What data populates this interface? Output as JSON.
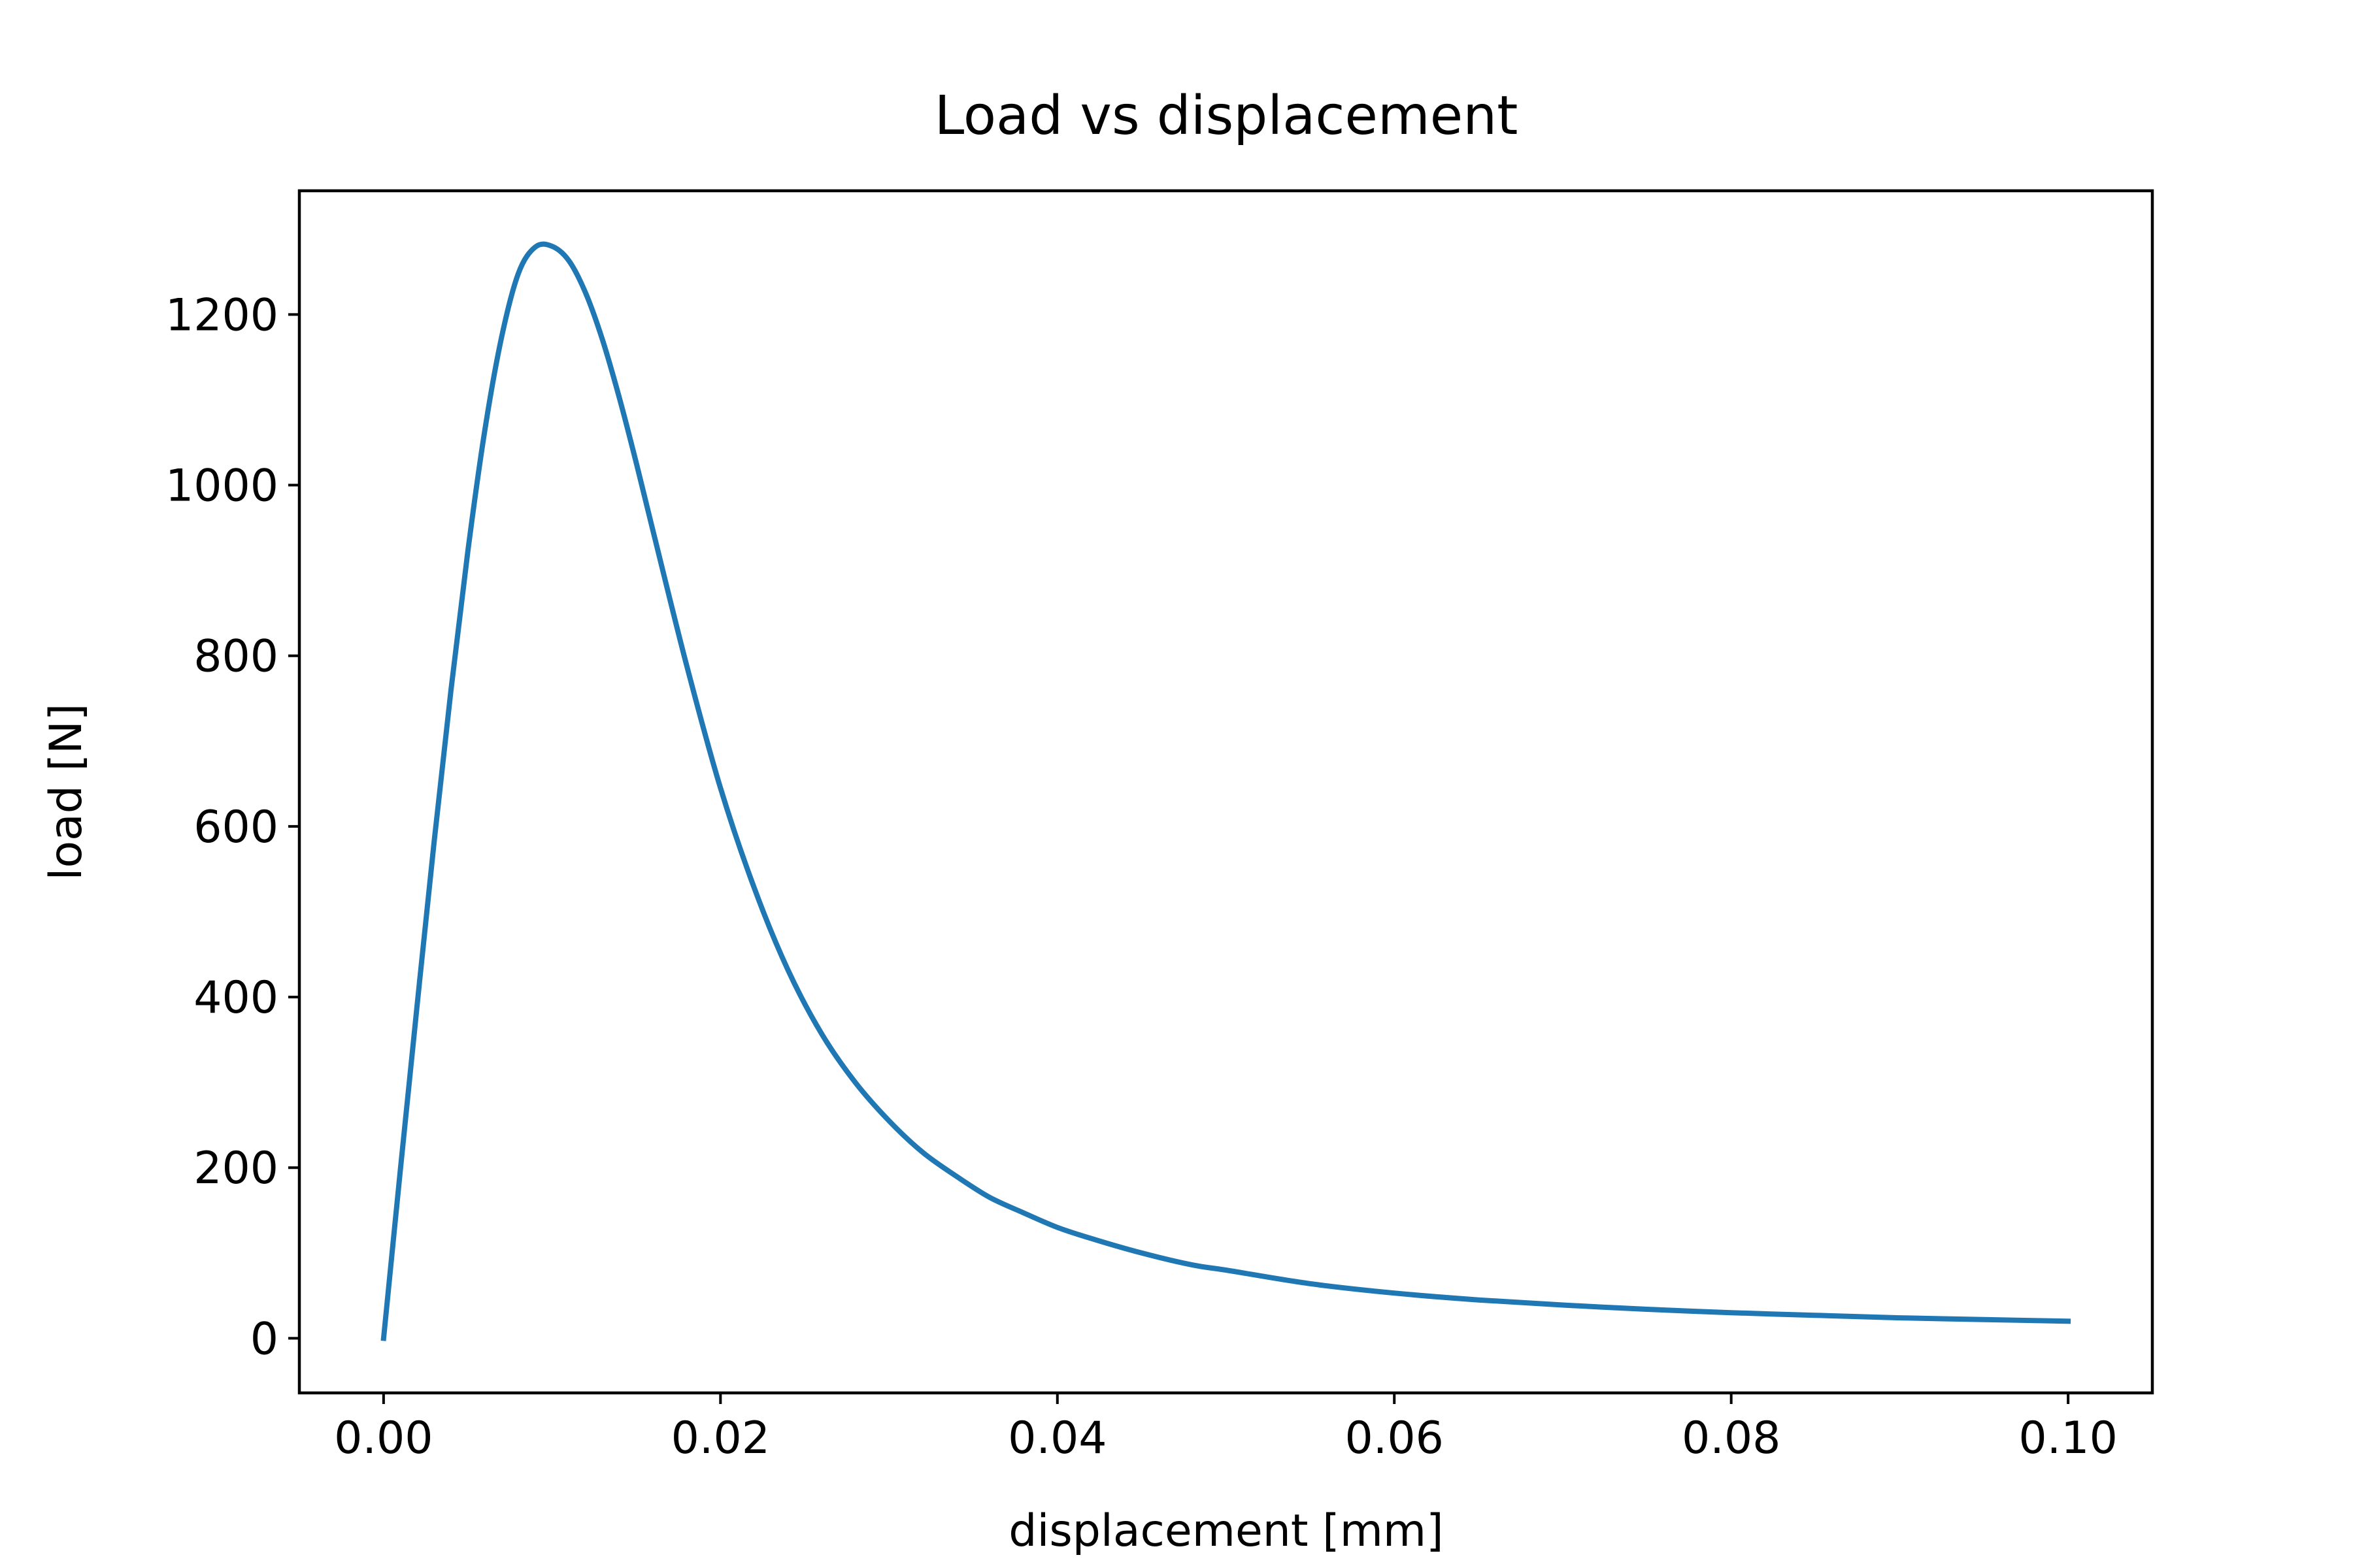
{
  "chart_data": {
    "type": "line",
    "title": "Load vs displacement",
    "xlabel": "displacement [mm]",
    "ylabel": "load [N]",
    "xlim": [
      -0.005,
      0.105
    ],
    "ylim": [
      -64,
      1345
    ],
    "xticks": [
      0.0,
      0.02,
      0.04,
      0.06,
      0.08,
      0.1
    ],
    "xtick_labels": [
      "0.00",
      "0.02",
      "0.04",
      "0.06",
      "0.08",
      "0.10"
    ],
    "yticks": [
      0,
      200,
      400,
      600,
      800,
      1000,
      1200
    ],
    "ytick_labels": [
      "0",
      "200",
      "400",
      "600",
      "800",
      "1000",
      "1200"
    ],
    "grid": false,
    "series": [
      {
        "color": "#1f77b4",
        "x": [
          0.0,
          0.001,
          0.002,
          0.003,
          0.004,
          0.005,
          0.006,
          0.007,
          0.008,
          0.009,
          0.01,
          0.011,
          0.012,
          0.013,
          0.014,
          0.015,
          0.016,
          0.018,
          0.02,
          0.022,
          0.024,
          0.026,
          0.028,
          0.03,
          0.032,
          0.034,
          0.036,
          0.038,
          0.04,
          0.042,
          0.045,
          0.048,
          0.05,
          0.055,
          0.06,
          0.065,
          0.07,
          0.075,
          0.08,
          0.085,
          0.09,
          0.095,
          0.1
        ],
        "y": [
          0,
          198,
          392,
          582,
          760,
          922,
          1063,
          1173,
          1248,
          1279,
          1280,
          1263,
          1225,
          1170,
          1102,
          1026,
          946,
          788,
          645,
          528,
          432,
          357,
          300,
          255,
          218,
          190,
          165,
          147,
          130,
          117,
          100,
          86,
          80,
          64,
          53,
          45,
          39,
          34,
          30,
          27,
          24,
          22,
          20
        ]
      }
    ]
  }
}
